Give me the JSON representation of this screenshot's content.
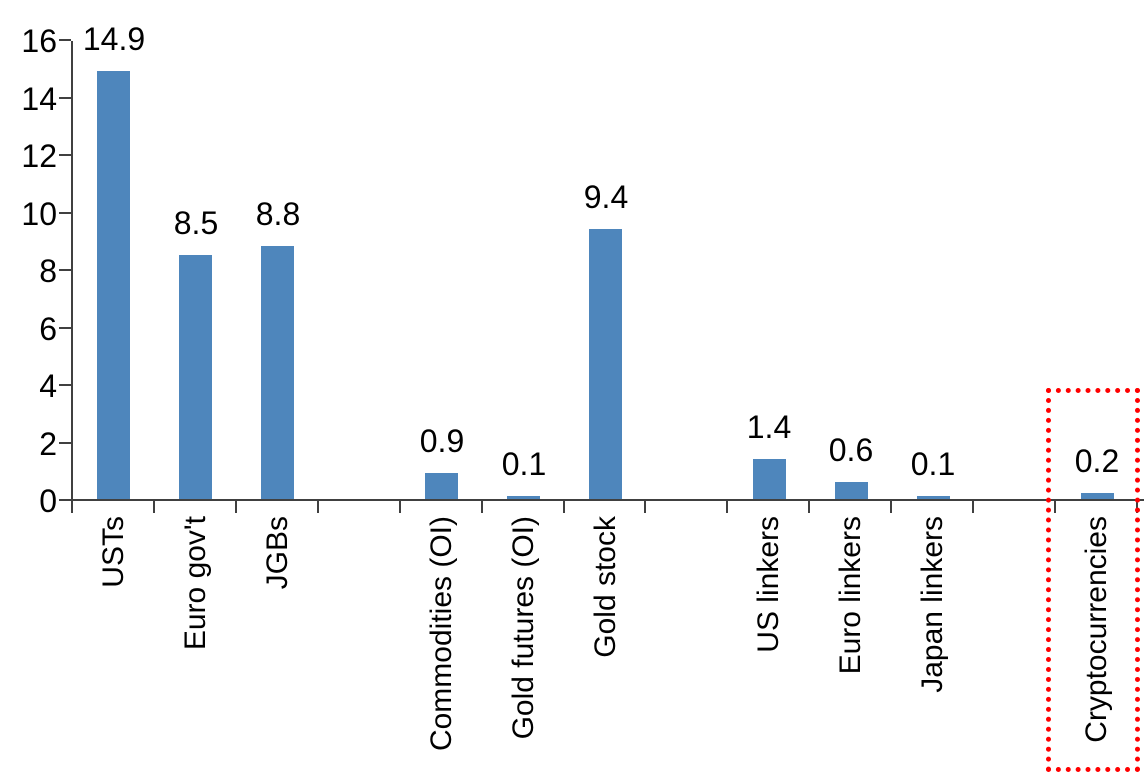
{
  "chart_data": {
    "type": "bar",
    "title": "",
    "xlabel": "",
    "ylabel": "",
    "categories": [
      "USTs",
      "Euro gov't",
      "JGBs",
      "Commodities (OI)",
      "Gold futures (OI)",
      "Gold stock",
      "US linkers",
      "Euro linkers",
      "Japan linkers",
      "Cryptocurrencies"
    ],
    "values": [
      14.9,
      8.5,
      8.8,
      0.9,
      0.1,
      9.4,
      1.4,
      0.6,
      0.1,
      0.2
    ],
    "data_labels": [
      "14.9",
      "8.5",
      "8.8",
      "0.9",
      "0.1",
      "9.4",
      "1.4",
      "0.6",
      "0.1",
      "0.2"
    ],
    "groups": [
      [
        "USTs",
        "Euro gov't",
        "JGBs"
      ],
      [
        "Commodities (OI)",
        "Gold futures (OI)",
        "Gold stock"
      ],
      [
        "US linkers",
        "Euro linkers",
        "Japan linkers"
      ],
      [
        "Cryptocurrencies"
      ]
    ],
    "slot_of_category": [
      0,
      1,
      2,
      4,
      5,
      6,
      8,
      9,
      10,
      12
    ],
    "total_slots": 13,
    "ylim": [
      0,
      16
    ],
    "yticks": [
      0,
      2,
      4,
      6,
      8,
      10,
      12,
      14,
      16
    ],
    "grid": false,
    "legend": false,
    "bar_color": "#4E86BC",
    "axis_color": "#404040",
    "text_color": "#000000",
    "highlight": {
      "category": "Cryptocurrencies",
      "style": "dotted-box",
      "color": "#FF0000"
    }
  }
}
